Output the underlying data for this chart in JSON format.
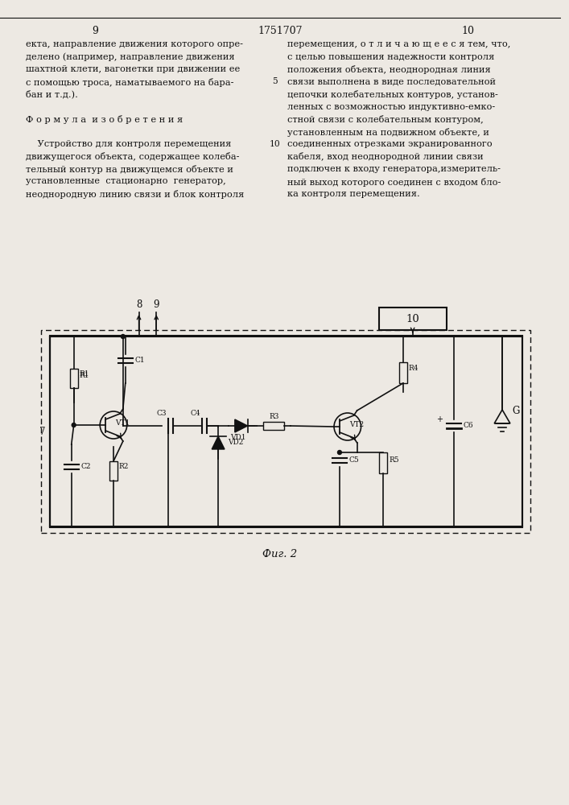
{
  "page_numbers": [
    "9",
    "1751707",
    "10"
  ],
  "left_col_text": [
    "екта, направление движения которого опре-",
    "делено (например, направление движения",
    "шахтной клети, вагонетки при движении ее",
    "с помощью троса, наматываемого на бара-",
    "бан и т.д.).",
    "",
    "Ф о р м у л а  и з о б р е т е н и я",
    "",
    "    Устройство для контроля перемещения",
    "движущегося объекта, содержащее колеба-",
    "тельный контур на движущемся объекте и",
    "установленные  стационарно  генератор,",
    "неоднородную линию связи и блок контроля"
  ],
  "right_col_text": [
    "перемещения, о т л и ч а ю щ е е с я тем, что,",
    "с целью повышения надежности контроля",
    "положения объекта, неоднородная линия",
    "связи выполнена в виде последовательной",
    "цепочки колебательных контуров, установ-",
    "ленных с возможностью индуктивно-емко-",
    "стной связи с колебательным контуром,",
    "установленным на подвижном объекте, и",
    "соединенных отрезками экранированного",
    "кабеля, вход неоднородной линии связи",
    "подключен к входу генератора,измеритель-",
    "ный выход которого соединен с входом бло-",
    "ка контроля перемещения."
  ],
  "caption": "Фиг. 2",
  "background_color": "#ede9e3",
  "text_color": "#111111",
  "line_color": "#111111",
  "fontsize_body": 8.2,
  "fontsize_header": 9.0
}
